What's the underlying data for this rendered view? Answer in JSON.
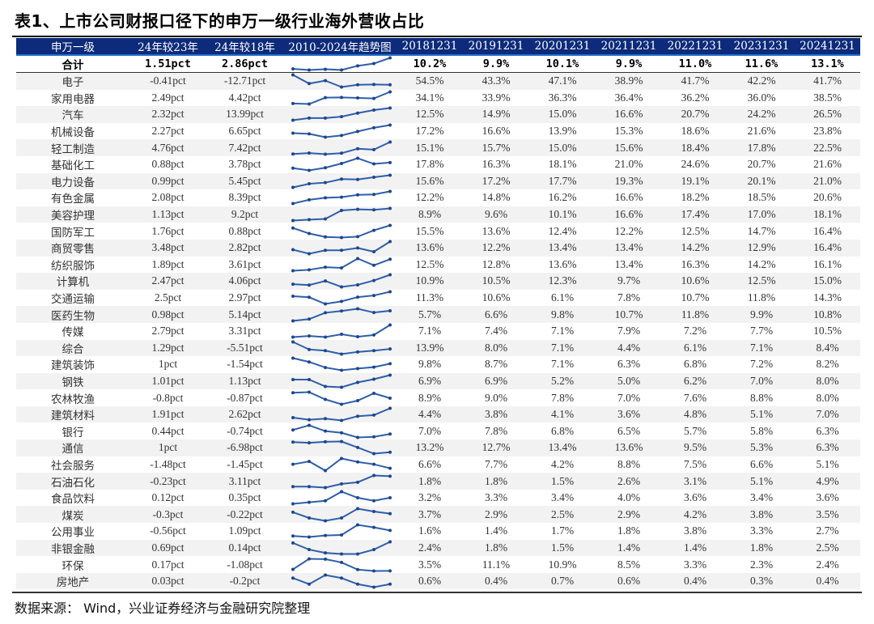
{
  "title": "表1、上市公司财报口径下的申万一级行业海外营收占比",
  "colors": {
    "header_bg": "#0d2b7a",
    "spark_line": "#2f5ea8",
    "row_alt": "#f2f2f2"
  },
  "headers": [
    "申万一级",
    "24年较23年",
    "24年较18年",
    "2010-2024年趋势图",
    "20181231",
    "20191231",
    "20201231",
    "20211231",
    "20221231",
    "20231231",
    "20241231"
  ],
  "total": {
    "name": "合计",
    "d23": "1.51pct",
    "d18": "2.86pct",
    "values": [
      "10.2%",
      "9.9%",
      "10.1%",
      "9.9%",
      "11.0%",
      "11.6%",
      "13.1%"
    ]
  },
  "rows": [
    {
      "name": "电子",
      "d23": "-0.41pct",
      "d18": "-12.71pct",
      "values": [
        "54.5%",
        "43.3%",
        "47.1%",
        "38.9%",
        "41.7%",
        "42.2%",
        "41.7%"
      ]
    },
    {
      "name": "家用电器",
      "d23": "2.49pct",
      "d18": "4.42pct",
      "values": [
        "34.1%",
        "33.9%",
        "36.3%",
        "36.4%",
        "36.2%",
        "36.0%",
        "38.5%"
      ]
    },
    {
      "name": "汽车",
      "d23": "2.32pct",
      "d18": "13.99pct",
      "values": [
        "12.5%",
        "14.9%",
        "15.0%",
        "16.6%",
        "20.7%",
        "24.2%",
        "26.5%"
      ]
    },
    {
      "name": "机械设备",
      "d23": "2.27pct",
      "d18": "6.65pct",
      "values": [
        "17.2%",
        "16.6%",
        "13.9%",
        "15.3%",
        "18.6%",
        "21.6%",
        "23.8%"
      ]
    },
    {
      "name": "轻工制造",
      "d23": "4.76pct",
      "d18": "7.42pct",
      "values": [
        "15.1%",
        "15.7%",
        "15.0%",
        "15.6%",
        "18.4%",
        "17.8%",
        "22.5%"
      ]
    },
    {
      "name": "基础化工",
      "d23": "0.88pct",
      "d18": "3.78pct",
      "values": [
        "17.8%",
        "16.3%",
        "18.1%",
        "21.0%",
        "24.6%",
        "20.7%",
        "21.6%"
      ]
    },
    {
      "name": "电力设备",
      "d23": "0.99pct",
      "d18": "5.45pct",
      "values": [
        "15.6%",
        "17.2%",
        "17.7%",
        "19.3%",
        "19.1%",
        "20.1%",
        "21.0%"
      ]
    },
    {
      "name": "有色金属",
      "d23": "2.08pct",
      "d18": "8.39pct",
      "values": [
        "12.2%",
        "14.8%",
        "16.2%",
        "16.6%",
        "18.2%",
        "18.5%",
        "20.6%"
      ]
    },
    {
      "name": "美容护理",
      "d23": "1.13pct",
      "d18": "9.2pct",
      "values": [
        "8.9%",
        "9.6%",
        "10.1%",
        "16.6%",
        "17.4%",
        "17.0%",
        "18.1%"
      ]
    },
    {
      "name": "国防军工",
      "d23": "1.76pct",
      "d18": "0.88pct",
      "values": [
        "15.5%",
        "13.6%",
        "12.4%",
        "12.2%",
        "12.5%",
        "14.7%",
        "16.4%"
      ]
    },
    {
      "name": "商贸零售",
      "d23": "3.48pct",
      "d18": "2.82pct",
      "values": [
        "13.6%",
        "12.2%",
        "13.4%",
        "13.4%",
        "14.2%",
        "12.9%",
        "16.4%"
      ]
    },
    {
      "name": "纺织服饰",
      "d23": "1.89pct",
      "d18": "3.61pct",
      "values": [
        "12.5%",
        "12.8%",
        "13.6%",
        "13.4%",
        "16.3%",
        "14.2%",
        "16.1%"
      ]
    },
    {
      "name": "计算机",
      "d23": "2.47pct",
      "d18": "4.06pct",
      "values": [
        "10.9%",
        "10.5%",
        "12.3%",
        "9.7%",
        "10.6%",
        "12.5%",
        "15.0%"
      ]
    },
    {
      "name": "交通运输",
      "d23": "2.5pct",
      "d18": "2.97pct",
      "values": [
        "11.3%",
        "10.6%",
        "6.1%",
        "7.8%",
        "10.7%",
        "11.8%",
        "14.3%"
      ]
    },
    {
      "name": "医药生物",
      "d23": "0.98pct",
      "d18": "5.14pct",
      "values": [
        "5.7%",
        "6.6%",
        "9.8%",
        "10.7%",
        "11.8%",
        "9.9%",
        "10.8%"
      ]
    },
    {
      "name": "传媒",
      "d23": "2.79pct",
      "d18": "3.31pct",
      "values": [
        "7.1%",
        "7.4%",
        "7.1%",
        "7.9%",
        "7.2%",
        "7.7%",
        "10.5%"
      ]
    },
    {
      "name": "综合",
      "d23": "1.29pct",
      "d18": "-5.51pct",
      "values": [
        "13.9%",
        "8.0%",
        "7.1%",
        "4.4%",
        "6.1%",
        "7.1%",
        "8.4%"
      ]
    },
    {
      "name": "建筑装饰",
      "d23": "1pct",
      "d18": "-1.54pct",
      "values": [
        "9.8%",
        "8.7%",
        "7.1%",
        "6.3%",
        "6.8%",
        "7.2%",
        "8.2%"
      ]
    },
    {
      "name": "钢铁",
      "d23": "1.01pct",
      "d18": "1.13pct",
      "values": [
        "6.9%",
        "6.9%",
        "5.2%",
        "5.0%",
        "6.2%",
        "7.0%",
        "8.0%"
      ]
    },
    {
      "name": "农林牧渔",
      "d23": "-0.8pct",
      "d18": "-0.87pct",
      "values": [
        "8.9%",
        "9.0%",
        "7.8%",
        "7.0%",
        "7.6%",
        "8.8%",
        "8.0%"
      ]
    },
    {
      "name": "建筑材料",
      "d23": "1.91pct",
      "d18": "2.62pct",
      "values": [
        "4.4%",
        "3.8%",
        "4.1%",
        "3.6%",
        "4.8%",
        "5.1%",
        "7.0%"
      ]
    },
    {
      "name": "银行",
      "d23": "0.44pct",
      "d18": "-0.74pct",
      "values": [
        "7.0%",
        "7.8%",
        "6.8%",
        "6.5%",
        "5.7%",
        "5.8%",
        "6.3%"
      ]
    },
    {
      "name": "通信",
      "d23": "1pct",
      "d18": "-6.98pct",
      "values": [
        "13.2%",
        "12.7%",
        "13.4%",
        "13.6%",
        "9.5%",
        "5.3%",
        "6.3%"
      ]
    },
    {
      "name": "社会服务",
      "d23": "-1.48pct",
      "d18": "-1.45pct",
      "values": [
        "6.6%",
        "7.7%",
        "4.2%",
        "8.8%",
        "7.5%",
        "6.6%",
        "5.1%"
      ]
    },
    {
      "name": "石油石化",
      "d23": "-0.23pct",
      "d18": "3.11pct",
      "values": [
        "1.8%",
        "1.8%",
        "1.5%",
        "2.6%",
        "3.1%",
        "5.1%",
        "4.9%"
      ]
    },
    {
      "name": "食品饮料",
      "d23": "0.12pct",
      "d18": "0.35pct",
      "values": [
        "3.2%",
        "3.3%",
        "3.4%",
        "4.0%",
        "3.6%",
        "3.4%",
        "3.6%"
      ]
    },
    {
      "name": "煤炭",
      "d23": "-0.3pct",
      "d18": "-0.22pct",
      "values": [
        "3.7%",
        "2.9%",
        "2.5%",
        "2.9%",
        "4.2%",
        "3.8%",
        "3.5%"
      ]
    },
    {
      "name": "公用事业",
      "d23": "-0.56pct",
      "d18": "1.09pct",
      "values": [
        "1.6%",
        "1.4%",
        "1.7%",
        "1.8%",
        "3.8%",
        "3.3%",
        "2.7%"
      ]
    },
    {
      "name": "非银金融",
      "d23": "0.69pct",
      "d18": "0.14pct",
      "values": [
        "2.4%",
        "1.8%",
        "1.5%",
        "1.4%",
        "1.4%",
        "1.8%",
        "2.5%"
      ]
    },
    {
      "name": "环保",
      "d23": "0.17pct",
      "d18": "-1.08pct",
      "values": [
        "3.5%",
        "11.1%",
        "10.9%",
        "8.5%",
        "3.3%",
        "2.3%",
        "2.4%"
      ]
    },
    {
      "name": "房地产",
      "d23": "0.03pct",
      "d18": "-0.2pct",
      "values": [
        "0.6%",
        "0.4%",
        "0.7%",
        "0.6%",
        "0.4%",
        "0.3%",
        "0.4%"
      ]
    }
  ],
  "source": "数据来源： Wind，兴业证券经济与金融研究院整理"
}
